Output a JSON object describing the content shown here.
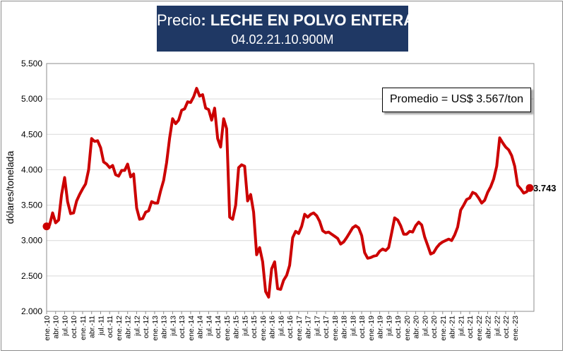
{
  "header": {
    "title_prefix": "Precio",
    "title_colon": ":",
    "title_product": "LECHE EN POLVO ENTERA",
    "subtitle": "04.02.21.10.900M"
  },
  "annotation": {
    "average_label": "Promedio = US$ 3.567/ton"
  },
  "colors": {
    "line": "#cc0000",
    "title_bg": "#1f3864",
    "grid": "#d9d9d9"
  },
  "chart_data": {
    "type": "line",
    "title": "Precio: LECHE EN POLVO ENTERA",
    "ylabel": "dólares/tonelada",
    "xlabel": "",
    "ylim": [
      2000,
      5500
    ],
    "yticks": [
      2000,
      2500,
      3000,
      3500,
      4000,
      4500,
      5000,
      5500
    ],
    "ytick_labels": [
      "2.000",
      "2.500",
      "3.000",
      "3.500",
      "4.000",
      "4.500",
      "5.000",
      "5.500"
    ],
    "grid": "horizontal",
    "xtick_labels": [
      "ene.-10",
      "abr.-10",
      "jul.-10",
      "oct.-10",
      "ene.-11",
      "abr.-11",
      "jul.-11",
      "oct.-11",
      "ene.-12",
      "abr.-12",
      "jul.-12",
      "oct.-12",
      "ene.-13",
      "abr.-13",
      "jul.-13",
      "oct.-13",
      "ene.-14",
      "abr.-14",
      "jul.-14",
      "oct.-14",
      "ene.-15",
      "abr.-15",
      "jul.-15",
      "oct.-15",
      "ene.-16",
      "abr.-16",
      "jul.-16",
      "oct.-16",
      "ene.-17",
      "abr.-17",
      "jul.-17",
      "oct.-17",
      "ene.-18",
      "abr.-18",
      "jul.-18",
      "oct.-18",
      "ene.-19",
      "abr.-19",
      "jul.-19",
      "oct.-19",
      "ene.-20",
      "abr.-20",
      "jul.-20",
      "oct.-20",
      "ene.-21",
      "abr.-21",
      "jul.-21",
      "oct.-21",
      "ene.-22",
      "abr.-22",
      "jul.-22",
      "oct.-22",
      "ene.-23"
    ],
    "x_start": "ene.-10",
    "x_step": "mes",
    "series": [
      {
        "values": [
          3200,
          3220,
          3390,
          3250,
          3290,
          3650,
          3890,
          3550,
          3380,
          3390,
          3560,
          3650,
          3730,
          3800,
          4000,
          4440,
          4400,
          4410,
          4310,
          4110,
          4080,
          4030,
          4060,
          3930,
          3910,
          3990,
          3990,
          4080,
          3900,
          3940,
          3460,
          3300,
          3310,
          3400,
          3420,
          3550,
          3530,
          3530,
          3700,
          3850,
          4100,
          4450,
          4720,
          4650,
          4700,
          4840,
          4860,
          4960,
          4950,
          5030,
          5150,
          5040,
          5060,
          4870,
          4850,
          4700,
          4870,
          4440,
          4320,
          4720,
          4580,
          3330,
          3300,
          3500,
          4030,
          4070,
          4050,
          3560,
          3650,
          3400,
          2800,
          2900,
          2700,
          2280,
          2200,
          2600,
          2700,
          2320,
          2310,
          2440,
          2510,
          2650,
          3040,
          3130,
          3100,
          3200,
          3370,
          3330,
          3370,
          3390,
          3350,
          3270,
          3140,
          3110,
          3120,
          3090,
          3060,
          3030,
          2950,
          2980,
          3040,
          3110,
          3180,
          3210,
          3180,
          3070,
          2830,
          2750,
          2760,
          2780,
          2790,
          2850,
          2880,
          2860,
          2900,
          3110,
          3320,
          3290,
          3210,
          3090,
          3090,
          3130,
          3120,
          3210,
          3260,
          3220,
          3050,
          2930,
          2810,
          2830,
          2900,
          2950,
          2980,
          3000,
          3020,
          3000,
          3080,
          3190,
          3430,
          3500,
          3580,
          3600,
          3680,
          3660,
          3600,
          3530,
          3570,
          3680,
          3760,
          3870,
          4050,
          4450,
          4380,
          4320,
          4280,
          4200,
          4050,
          3780,
          3730,
          3670,
          3690,
          3743
        ],
        "last_label": "3.743"
      }
    ]
  }
}
